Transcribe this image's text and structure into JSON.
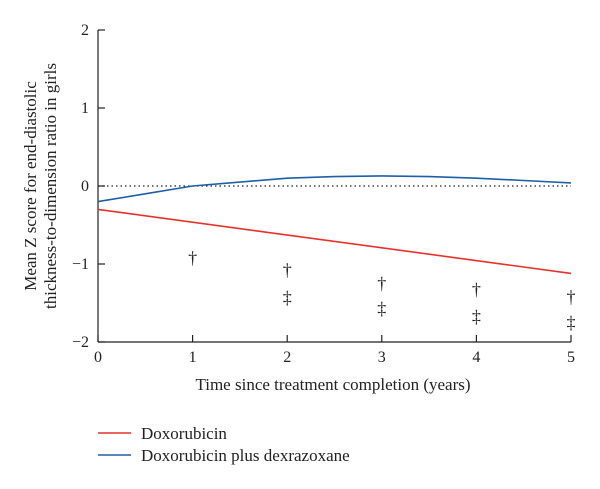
{
  "chart_data": {
    "type": "line",
    "xlabel": "Time since treatment completion (years)",
    "ylabel_line1": "Mean Z score for end-diastolic",
    "ylabel_line2": "thickness-to-dimension ratio in girls",
    "xlim": [
      0,
      5
    ],
    "ylim": [
      -2,
      2
    ],
    "x_ticks": [
      0,
      1,
      2,
      3,
      4,
      5
    ],
    "y_ticks": [
      2,
      1,
      0,
      -1,
      -2
    ],
    "y_tick_labels": [
      "2",
      "1",
      "0",
      "−1",
      "−2"
    ],
    "reference_line": {
      "y": 0,
      "style": "dotted"
    },
    "legend_position": "bottom-left below plot",
    "series": [
      {
        "name": "Doxorubicin",
        "color": "#e8312a",
        "x": [
          0,
          5
        ],
        "y": [
          -0.3,
          -1.12
        ]
      },
      {
        "name": "Doxorubicin plus dexrazoxane",
        "color": "#1f5fa8",
        "x": [
          0,
          0.5,
          1,
          1.5,
          2,
          2.5,
          3,
          3.5,
          4,
          4.5,
          5
        ],
        "y": [
          -0.2,
          -0.1,
          0.0,
          0.05,
          0.1,
          0.12,
          0.13,
          0.12,
          0.1,
          0.07,
          0.04
        ]
      }
    ],
    "markers": [
      {
        "x": 1,
        "y": -0.92,
        "symbol": "†"
      },
      {
        "x": 2,
        "y": -1.08,
        "symbol": "†"
      },
      {
        "x": 2,
        "y": -1.43,
        "symbol": "‡"
      },
      {
        "x": 3,
        "y": -1.25,
        "symbol": "†"
      },
      {
        "x": 3,
        "y": -1.57,
        "symbol": "‡"
      },
      {
        "x": 4,
        "y": -1.33,
        "symbol": "†"
      },
      {
        "x": 4,
        "y": -1.67,
        "symbol": "‡"
      },
      {
        "x": 5,
        "y": -1.42,
        "symbol": "†"
      },
      {
        "x": 5,
        "y": -1.75,
        "symbol": "‡"
      }
    ]
  }
}
